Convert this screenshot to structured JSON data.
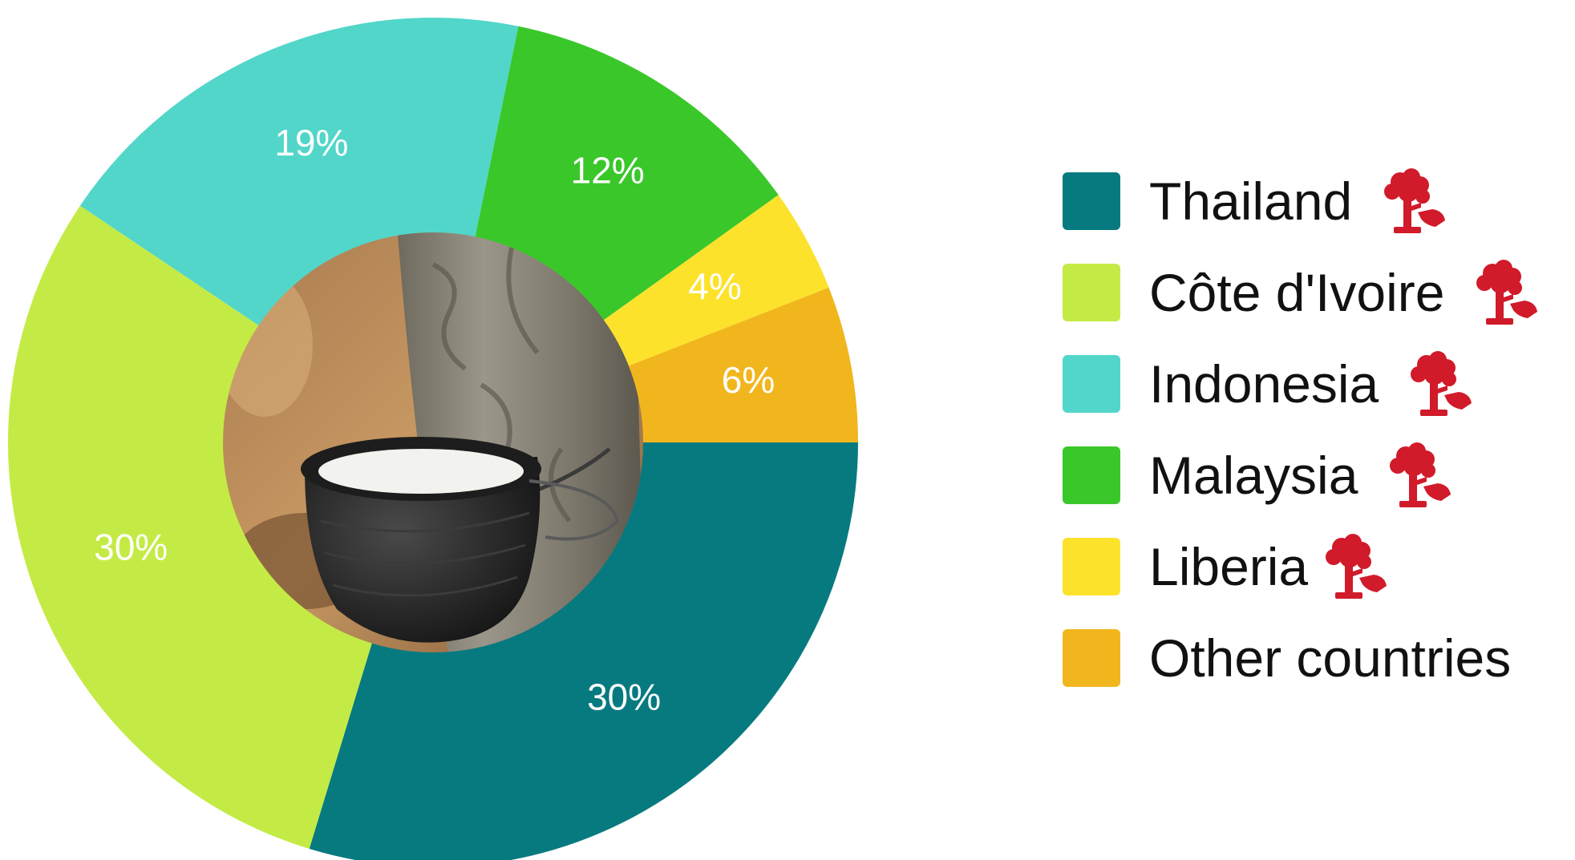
{
  "chart_data": {
    "type": "pie",
    "categories": [
      "Thailand",
      "Côte d'Ivoire",
      "Indonesia",
      "Malaysia",
      "Liberia",
      "Other countries"
    ],
    "values": [
      30,
      30,
      19,
      12,
      4,
      6
    ],
    "value_labels": [
      "30%",
      "30%",
      "19%",
      "12%",
      "4%",
      "6%"
    ],
    "colors": [
      "#077a80",
      "#c4eb45",
      "#52d6c9",
      "#3ac72a",
      "#fde22c",
      "#f1b61d"
    ],
    "donut": true,
    "center_image": "rubber-tapping-cup-photo",
    "legend_position": "right"
  },
  "legend": {
    "items": [
      {
        "label": "Thailand",
        "color": "#077a80",
        "icon": "rubber-tree-tapping-icon"
      },
      {
        "label": "Côte d'Ivoire",
        "color": "#c4eb45",
        "icon": "rubber-tree-tapping-icon"
      },
      {
        "label": "Indonesia",
        "color": "#52d6c9",
        "icon": "rubber-tree-tapping-icon"
      },
      {
        "label": "Malaysia",
        "color": "#3ac72a",
        "icon": "rubber-tree-tapping-icon"
      },
      {
        "label": "Liberia",
        "color": "#fde22c",
        "icon": "rubber-tree-tapping-icon"
      },
      {
        "label": "Other countries",
        "color": "#f1b61d",
        "icon": null
      }
    ],
    "icon_color": "#d11a2a"
  }
}
